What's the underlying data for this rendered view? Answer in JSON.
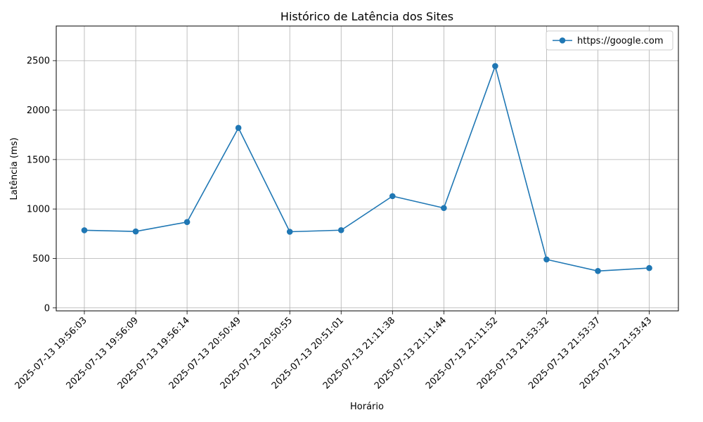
{
  "chart_data": {
    "type": "line",
    "title": "Histórico de Latência dos Sites",
    "xlabel": "Horário",
    "ylabel": "Latência (ms)",
    "categories": [
      "2025-07-13 19:56:03",
      "2025-07-13 19:56:09",
      "2025-07-13 19:56:14",
      "2025-07-13 20:50:49",
      "2025-07-13 20:50:55",
      "2025-07-13 20:51:01",
      "2025-07-13 21:11:38",
      "2025-07-13 21:11:44",
      "2025-07-13 21:11:52",
      "2025-07-13 21:53:32",
      "2025-07-13 21:53:37",
      "2025-07-13 21:53:43"
    ],
    "series": [
      {
        "name": "https://google.com",
        "color": "#1f77b4",
        "marker": "circle",
        "values": [
          785,
          773,
          868,
          1820,
          770,
          786,
          1130,
          1010,
          2445,
          490,
          373,
          403
        ]
      }
    ],
    "ylim": [
      -30,
      2850
    ],
    "yticks": [
      0,
      500,
      1000,
      1500,
      2000,
      2500
    ],
    "grid": true,
    "legend_position": "top-right",
    "x_tick_rotation": 45
  }
}
